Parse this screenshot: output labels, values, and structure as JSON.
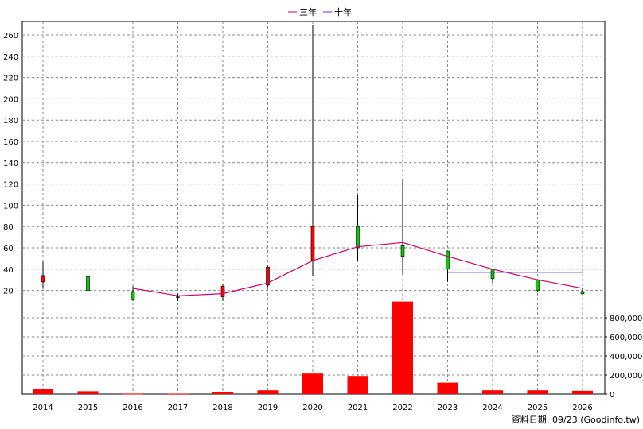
{
  "chart_data": {
    "type": "candlestick-with-volume",
    "legend": [
      {
        "label": "三年",
        "color": "#cc0066"
      },
      {
        "label": "十年",
        "color": "#6633cc"
      }
    ],
    "categories": [
      "2014",
      "2015",
      "2016",
      "2017",
      "2018",
      "2019",
      "2020",
      "2021",
      "2022",
      "2023",
      "2024",
      "2025",
      "2026"
    ],
    "candles": [
      {
        "year": "2014",
        "open": 28,
        "high": 47,
        "low": 22,
        "close": 34
      },
      {
        "year": "2015",
        "open": 33,
        "high": 34,
        "low": 13,
        "close": 20
      },
      {
        "year": "2016",
        "open": 19,
        "high": 24,
        "low": 10,
        "close": 12
      },
      {
        "year": "2017",
        "open": 14,
        "high": 17,
        "low": 10,
        "close": 14
      },
      {
        "year": "2018",
        "open": 14,
        "high": 26,
        "low": 10,
        "close": 24
      },
      {
        "year": "2019",
        "open": 25,
        "high": 43,
        "low": 23,
        "close": 42
      },
      {
        "year": "2020",
        "open": 48,
        "high": 269,
        "low": 33,
        "close": 80
      },
      {
        "year": "2021",
        "open": 80,
        "high": 110,
        "low": 48,
        "close": 60
      },
      {
        "year": "2022",
        "open": 62,
        "high": 125,
        "low": 35,
        "close": 52
      },
      {
        "year": "2023",
        "open": 57,
        "high": 57,
        "low": 28,
        "close": 40
      },
      {
        "year": "2024",
        "open": 40,
        "high": 40,
        "low": 27,
        "close": 31
      },
      {
        "year": "2025",
        "open": 30,
        "high": 30,
        "low": 18,
        "close": 20
      },
      {
        "year": "2026",
        "open": 19,
        "high": 22,
        "low": 16,
        "close": 17
      }
    ],
    "ma3": [
      {
        "year": "2016",
        "value": 22
      },
      {
        "year": "2017",
        "value": 15
      },
      {
        "year": "2018",
        "value": 17
      },
      {
        "year": "2019",
        "value": 27
      },
      {
        "year": "2020",
        "value": 48
      },
      {
        "year": "2021",
        "value": 61
      },
      {
        "year": "2022",
        "value": 65
      },
      {
        "year": "2023",
        "value": 52
      },
      {
        "year": "2024",
        "value": 40
      },
      {
        "year": "2025",
        "value": 30
      },
      {
        "year": "2026",
        "value": 22
      }
    ],
    "ma10": [
      {
        "year": "2023",
        "value": 37
      },
      {
        "year": "2026",
        "value": 37
      }
    ],
    "volume": [
      50000,
      30000,
      5000,
      3000,
      20000,
      40000,
      215000,
      190000,
      970000,
      120000,
      40000,
      40000,
      35000
    ],
    "price_axis": {
      "min": 20,
      "max": 260,
      "step": 20
    },
    "volume_axis": {
      "min": 0,
      "max": 800000,
      "step": 200000
    },
    "volume_tick_labels": [
      "0",
      "200,000",
      "400,000",
      "600,000",
      "800,000"
    ],
    "colors": {
      "up": "#ff0000",
      "down": "#00cc00",
      "ma3": "#cc0066",
      "ma10": "#6633cc",
      "volume": "#ff0000",
      "grid": "#888888"
    },
    "source_note": "資料日期: 09/23  (Goodinfo.tw)"
  }
}
